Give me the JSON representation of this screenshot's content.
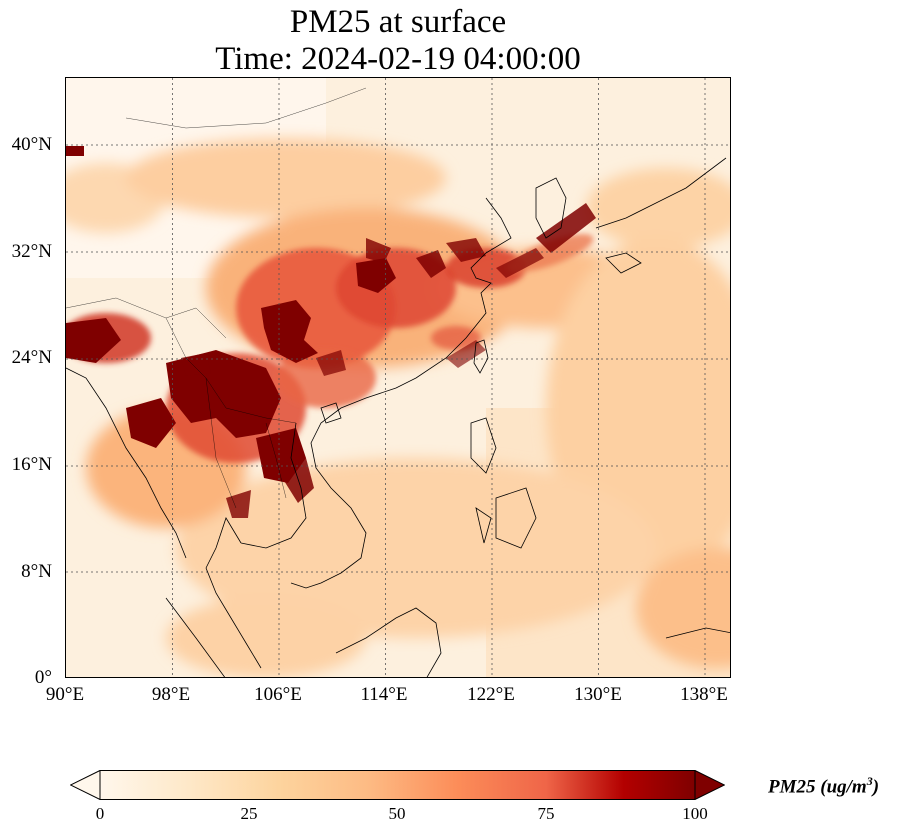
{
  "title_line1": "PM25 at surface",
  "title_line2": "Time: 2024-02-19 04:00:00",
  "map": {
    "lon_range": [
      90,
      140
    ],
    "lat_range": [
      0,
      45
    ],
    "lat_ticks": [
      "40°N",
      "32°N",
      "24°N",
      "16°N",
      "8°N",
      "0°"
    ],
    "lon_ticks": [
      "90°E",
      "98°E",
      "106°E",
      "114°E",
      "122°E",
      "130°E",
      "138°E"
    ],
    "gridlines": "dotted",
    "variable": "PM25"
  },
  "colorbar": {
    "colormap": "OrRd",
    "ticks": [
      "0",
      "25",
      "50",
      "75",
      "100"
    ],
    "label_text": "PM25 (ug/m",
    "label_sup": "3",
    "label_close": ")",
    "extend": "both"
  }
}
